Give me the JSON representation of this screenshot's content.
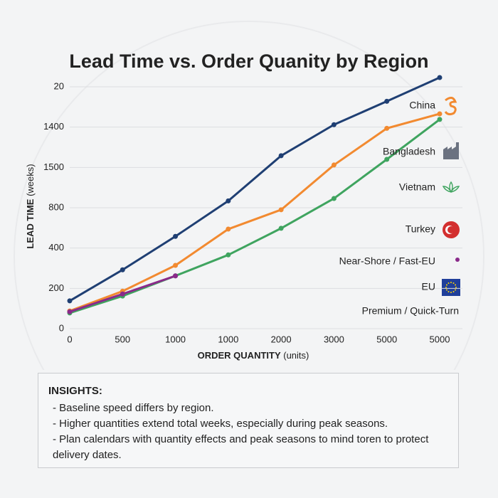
{
  "chart_data": {
    "type": "line",
    "title": "Lead Time vs. Order Quanity by Region",
    "y_label": "LEAD TIME",
    "y_unit": "(weeks)",
    "x_label": "ORDER QUANTITY",
    "x_unit": "(units)",
    "categories": [
      "0",
      "500",
      "1000",
      "1000",
      "2000",
      "3000",
      "5000",
      "5000"
    ],
    "ylim": [
      0,
      6.3
    ],
    "yticks": [
      0,
      {
        "value": 1,
        "label": "200"
      },
      {
        "value": 2,
        "label": "400"
      },
      {
        "value": 3,
        "label": "800"
      },
      {
        "value": 4,
        "label": "1500"
      },
      {
        "value": 5,
        "label": "1400"
      },
      {
        "value": 6,
        "label": "20"
      }
    ],
    "grid": true,
    "series": [
      {
        "name": "China",
        "color": "#1f3f73",
        "values": [
          0.69,
          1.46,
          2.29,
          3.17,
          4.29,
          5.06,
          5.64,
          6.23
        ]
      },
      {
        "name": "Bangladesh",
        "color": "#f28a30",
        "values": [
          0.44,
          0.93,
          1.57,
          2.47,
          2.95,
          4.06,
          4.97,
          5.33
        ]
      },
      {
        "name": "Vietnam",
        "color": "#3fa45f",
        "values": [
          0.39,
          0.81,
          1.31,
          1.83,
          2.49,
          3.23,
          4.2,
          5.19
        ]
      },
      {
        "name": "Near-Shore / Fast-EU",
        "color": "#8a2a8a",
        "values": [
          0.42,
          0.86,
          1.31,
          null,
          null,
          null,
          null,
          null
        ]
      }
    ],
    "other_regions": [
      "Turkey",
      "EU",
      "Premium / Quick-Turn"
    ]
  },
  "insights": {
    "title": "INSIGHTS:",
    "items": [
      "- Baseline speed differs by region.",
      "- Higher quantities extend total weeks, especially during peak seasons.",
      "- Plan calendars with quantity effects and peak seasons to mind toren to protect delivery dates."
    ]
  }
}
